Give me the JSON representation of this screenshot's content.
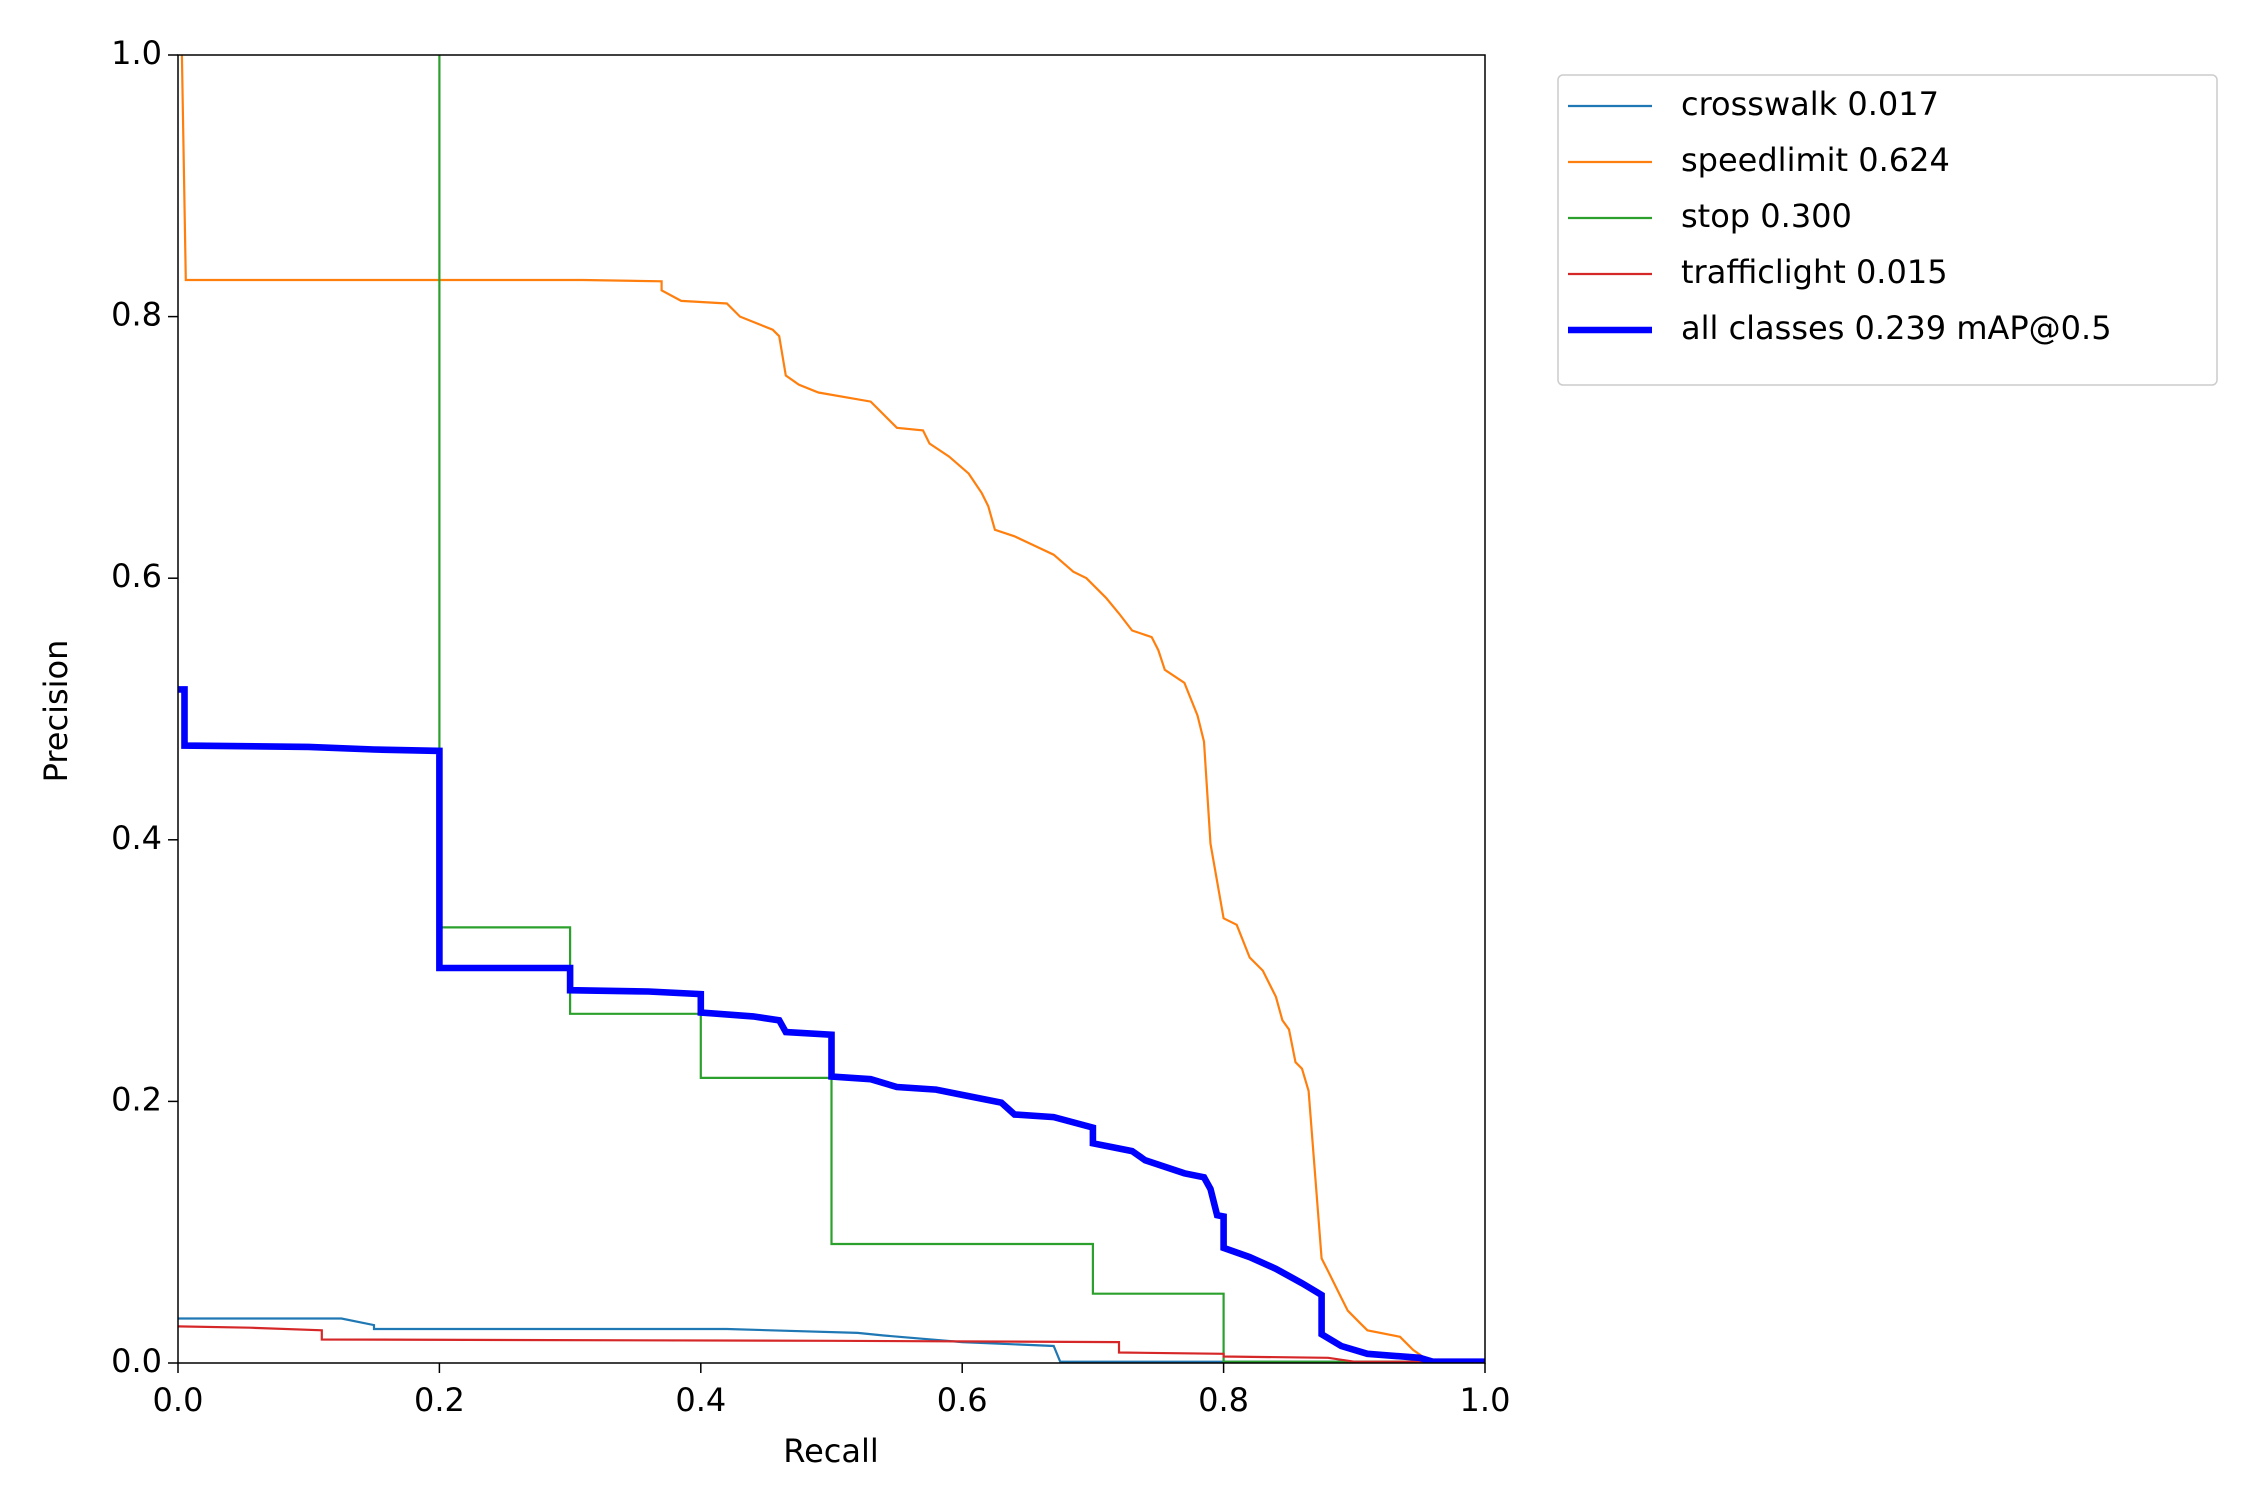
{
  "chart_data": {
    "type": "line",
    "xlabel": "Recall",
    "ylabel": "Precision",
    "xlim": [
      0,
      1
    ],
    "ylim": [
      0,
      1
    ],
    "xticks": [
      {
        "value": 0,
        "label": "0.0"
      },
      0.2,
      0.4,
      0.6,
      0.8,
      {
        "value": 1,
        "label": "1.0"
      }
    ],
    "yticks": [
      {
        "value": 0,
        "label": "0.0"
      },
      0.2,
      0.4,
      0.6,
      0.8,
      {
        "value": 1,
        "label": "1.0"
      }
    ],
    "legend": "outside-upper-right",
    "series": [
      {
        "name": "crosswalk 0.017",
        "color": "#1f77b4",
        "width": 1,
        "x": [
          0,
          0.125,
          0.15,
          0.15,
          0.42,
          0.52,
          0.54,
          0.6,
          0.67,
          0.675,
          1
        ],
        "values": [
          0.034,
          0.034,
          0.029,
          0.026,
          0.026,
          0.023,
          0.021,
          0.016,
          0.013,
          0.001,
          0.001
        ]
      },
      {
        "name": "speedlimit 0.624",
        "color": "#ff7f0e",
        "width": 1,
        "x": [
          0.003,
          0.006,
          0.31,
          0.37,
          0.37,
          0.385,
          0.42,
          0.43,
          0.455,
          0.46,
          0.465,
          0.475,
          0.49,
          0.53,
          0.55,
          0.57,
          0.575,
          0.59,
          0.605,
          0.615,
          0.62,
          0.625,
          0.64,
          0.655,
          0.67,
          0.685,
          0.695,
          0.71,
          0.72,
          0.73,
          0.745,
          0.75,
          0.755,
          0.77,
          0.78,
          0.785,
          0.79,
          0.8,
          0.81,
          0.82,
          0.83,
          0.84,
          0.845,
          0.85,
          0.855,
          0.86,
          0.865,
          0.875,
          0.88,
          0.885,
          0.89,
          0.895,
          0.905,
          0.91,
          0.935,
          0.945,
          0.955,
          0.96,
          1
        ],
        "values": [
          1.0,
          0.828,
          0.828,
          0.827,
          0.82,
          0.812,
          0.81,
          0.8,
          0.79,
          0.785,
          0.755,
          0.748,
          0.742,
          0.735,
          0.715,
          0.713,
          0.703,
          0.693,
          0.68,
          0.665,
          0.655,
          0.637,
          0.632,
          0.625,
          0.618,
          0.605,
          0.6,
          0.585,
          0.573,
          0.56,
          0.555,
          0.545,
          0.53,
          0.52,
          0.495,
          0.475,
          0.397,
          0.34,
          0.335,
          0.31,
          0.3,
          0.28,
          0.262,
          0.255,
          0.23,
          0.225,
          0.208,
          0.08,
          0.07,
          0.06,
          0.05,
          0.04,
          0.03,
          0.025,
          0.02,
          0.01,
          0.003,
          0,
          0
        ]
      },
      {
        "name": "stop 0.300",
        "color": "#2ca02c",
        "width": 1,
        "x": [
          0.2,
          0.2,
          0.3,
          0.3,
          0.4,
          0.4,
          0.5,
          0.5,
          0.7,
          0.7,
          0.8,
          0.8,
          1
        ],
        "values": [
          1.0,
          0.333,
          0.333,
          0.267,
          0.267,
          0.218,
          0.218,
          0.091,
          0.091,
          0.053,
          0.053,
          0.001,
          0.001
        ]
      },
      {
        "name": "trafficlight 0.015",
        "color": "#d62728",
        "width": 1,
        "x": [
          0,
          0.055,
          0.11,
          0.11,
          0.5,
          0.72,
          0.72,
          0.8,
          0.8,
          0.88,
          0.9,
          1
        ],
        "values": [
          0.028,
          0.027,
          0.025,
          0.018,
          0.017,
          0.016,
          0.008,
          0.007,
          0.005,
          0.004,
          0.001,
          0.001
        ]
      },
      {
        "name": "all classes 0.239 mAP@0.5",
        "color": "#0000ff",
        "width": 3,
        "x": [
          0,
          0.005,
          0.005,
          0.1,
          0.15,
          0.2,
          0.2,
          0.3,
          0.3,
          0.36,
          0.4,
          0.4,
          0.44,
          0.46,
          0.465,
          0.5,
          0.5,
          0.53,
          0.55,
          0.58,
          0.6,
          0.63,
          0.64,
          0.67,
          0.7,
          0.7,
          0.73,
          0.74,
          0.77,
          0.785,
          0.79,
          0.795,
          0.8,
          0.8,
          0.82,
          0.84,
          0.86,
          0.87,
          0.875,
          0.875,
          0.89,
          0.91,
          0.95,
          0.96,
          1
        ],
        "values": [
          0.515,
          0.515,
          0.472,
          0.471,
          0.469,
          0.468,
          0.302,
          0.302,
          0.285,
          0.284,
          0.282,
          0.268,
          0.265,
          0.262,
          0.253,
          0.251,
          0.219,
          0.217,
          0.211,
          0.209,
          0.205,
          0.199,
          0.19,
          0.188,
          0.18,
          0.168,
          0.162,
          0.155,
          0.145,
          0.142,
          0.133,
          0.113,
          0.112,
          0.088,
          0.081,
          0.072,
          0.061,
          0.055,
          0.052,
          0.022,
          0.013,
          0.007,
          0.004,
          0.001,
          0.001
        ]
      }
    ]
  }
}
